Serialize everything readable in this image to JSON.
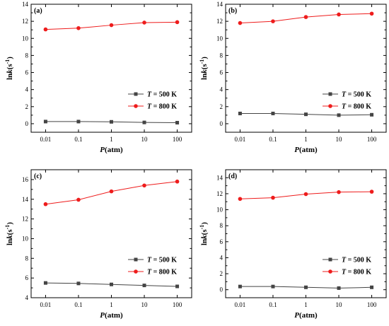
{
  "chart_data": [
    {
      "type": "line",
      "panel_label": "(a)",
      "xlabel_var": "P",
      "xlabel_unit": "(atm)",
      "ylabel_text": "ln",
      "ylabel_var": "k",
      "ylabel_unit": "(s",
      "ylabel_exp": "-1",
      "ylabel_close": ")",
      "x_scale": "log",
      "x": [
        0.01,
        0.1,
        1,
        10,
        100
      ],
      "x_ticks": [
        "0.01",
        "0.1",
        "1",
        "10",
        "100"
      ],
      "ylim": [
        -1,
        14
      ],
      "y_ticks": [
        0,
        2,
        4,
        6,
        8,
        10,
        12,
        14
      ],
      "legend_position": "lower-right",
      "series": [
        {
          "name_var": "T",
          "name_rest": " = 500 K",
          "marker": "square",
          "color": "#444444",
          "values": [
            0.25,
            0.25,
            0.22,
            0.15,
            0.12
          ]
        },
        {
          "name_var": "T",
          "name_rest": " = 800 K",
          "marker": "circle",
          "color": "#ee1c1c",
          "values": [
            11.05,
            11.2,
            11.55,
            11.85,
            11.9
          ]
        }
      ]
    },
    {
      "type": "line",
      "panel_label": "(b)",
      "xlabel_var": "P",
      "xlabel_unit": "(atm)",
      "ylabel_text": "ln",
      "ylabel_var": "k",
      "ylabel_unit": "(s",
      "ylabel_exp": "-1",
      "ylabel_close": ")",
      "x_scale": "log",
      "x": [
        0.01,
        0.1,
        1,
        10,
        100
      ],
      "x_ticks": [
        "0.01",
        "0.1",
        "1",
        "10",
        "100"
      ],
      "ylim": [
        -1,
        14
      ],
      "y_ticks": [
        0,
        2,
        4,
        6,
        8,
        10,
        12,
        14
      ],
      "legend_position": "lower-right",
      "series": [
        {
          "name_var": "T",
          "name_rest": " = 500 K",
          "marker": "square",
          "color": "#444444",
          "values": [
            1.2,
            1.2,
            1.1,
            1.0,
            1.05
          ]
        },
        {
          "name_var": "T",
          "name_rest": " = 800 K",
          "marker": "circle",
          "color": "#ee1c1c",
          "values": [
            11.8,
            12.0,
            12.5,
            12.8,
            12.9
          ]
        }
      ]
    },
    {
      "type": "line",
      "panel_label": "(c)",
      "xlabel_var": "P",
      "xlabel_unit": "(atm)",
      "ylabel_text": "ln",
      "ylabel_var": "k",
      "ylabel_unit": "(s",
      "ylabel_exp": "-1",
      "ylabel_close": ")",
      "x_scale": "log",
      "x": [
        0.01,
        0.1,
        1,
        10,
        100
      ],
      "x_ticks": [
        "0.01",
        "0.1",
        "1",
        "10",
        "100"
      ],
      "ylim": [
        4,
        17
      ],
      "y_ticks": [
        4,
        6,
        8,
        10,
        12,
        14,
        16
      ],
      "legend_position": "lower-right",
      "series": [
        {
          "name_var": "T",
          "name_rest": " = 500 K",
          "marker": "square",
          "color": "#444444",
          "values": [
            5.5,
            5.45,
            5.35,
            5.25,
            5.15
          ]
        },
        {
          "name_var": "T",
          "name_rest": " = 800 K",
          "marker": "circle",
          "color": "#ee1c1c",
          "values": [
            13.5,
            13.95,
            14.8,
            15.4,
            15.8
          ]
        }
      ]
    },
    {
      "type": "line",
      "panel_label": "(d)",
      "xlabel_var": "P",
      "xlabel_unit": "(atm)",
      "ylabel_text": "ln",
      "ylabel_var": "k",
      "ylabel_unit": "(s",
      "ylabel_exp": "-1",
      "ylabel_close": ")",
      "x_scale": "log",
      "x": [
        0.01,
        0.1,
        1,
        10,
        100
      ],
      "x_ticks": [
        "0.01",
        "0.1",
        "1",
        "10",
        "100"
      ],
      "ylim": [
        -1,
        15
      ],
      "y_ticks": [
        0,
        2,
        4,
        6,
        8,
        10,
        12,
        14
      ],
      "legend_position": "lower-right",
      "series": [
        {
          "name_var": "T",
          "name_rest": " = 500 K",
          "marker": "square",
          "color": "#444444",
          "values": [
            0.4,
            0.4,
            0.3,
            0.2,
            0.3
          ]
        },
        {
          "name_var": "T",
          "name_rest": " = 800 K",
          "marker": "circle",
          "color": "#ee1c1c",
          "values": [
            11.35,
            11.5,
            11.95,
            12.2,
            12.25
          ]
        }
      ]
    }
  ]
}
